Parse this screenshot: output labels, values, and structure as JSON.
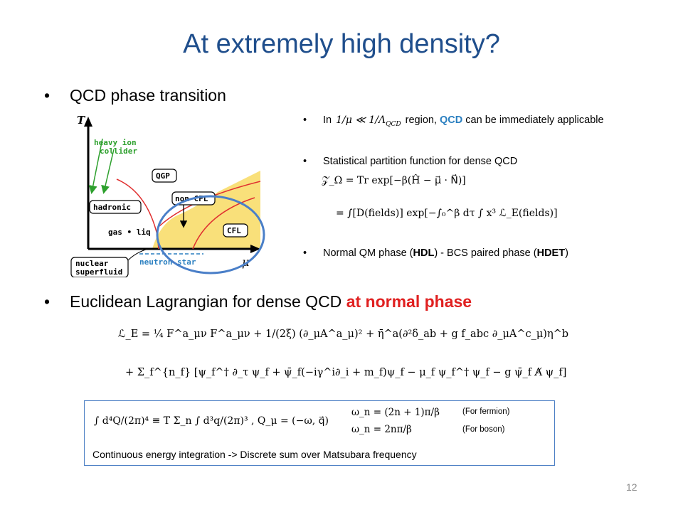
{
  "title": "At extremely high density?",
  "bullet1": "QCD phase transition",
  "bullet2": {
    "prefix": "Euclidean Lagrangian for dense QCD ",
    "highlight": "at normal phase"
  },
  "diagram": {
    "axis_y": "T",
    "axis_x": "μ",
    "labels": {
      "heavy_ion": "heavy ion\ncollider",
      "qgp": "QGP",
      "hadronic": "hadronic",
      "non_cfl": "non-CFL",
      "gas_liq": "gas • liq",
      "cfl": "CFL",
      "nuclear": "nuclear\nsuperfluid",
      "neutron": "neutron star"
    }
  },
  "right_bullets": {
    "b1_pre": "In",
    "b1_math": "1/μ ≪ 1/Λ",
    "b1_math_sub": "QCD",
    "b1_post": "region, ",
    "b1_qcd": "QCD",
    "b1_rest": " can be immediately applicable",
    "b2": "Statistical partition function for dense QCD",
    "b3_a": "Normal QM phase (",
    "b3_hdl": "HDL",
    "b3_b": ") - BCS paired phase (",
    "b3_hdet": "HDET",
    "b3_c": ")"
  },
  "formulas": {
    "partition_line1": "𝒵_Ω = Tr exp[−β(Ĥ − μ⃗ · N⃗)]",
    "partition_line2": "= ∫[D(fields)] exp[−∫₀^β dτ ∫ x³ ℒ_E(fields)]",
    "lagrangian_line1": "ℒ_E = ¼ F^a_μν F^a_μν + 1/(2ξ) (∂_μA^a_μ)² + η̄^a(∂²δ_ab + g f_abc ∂_μA^c_μ)η^b",
    "lagrangian_line2": "+ Σ_f^{n_f} [ψ_f^† ∂_τ ψ_f + ψ̄_f(−iγ^i∂_i + m_f)ψ_f − μ_f ψ_f^† ψ_f − g ψ̄_f A̸ ψ_f]",
    "box_integral": "∫ d⁴Q/(2π)⁴ ≡ T Σ_n ∫ d³q/(2π)³ ,   Q_μ = (−ω, q⃗)",
    "omega_fermion": "ω_n = (2n + 1)π/β",
    "omega_boson": "ω_n = 2nπ/β"
  },
  "box": {
    "fermion_note": "(For fermion)",
    "boson_note": "(For boson)",
    "caption": "Continuous energy integration -> Discrete sum over Matsubara frequency"
  },
  "page_number": "12",
  "colors": {
    "title": "#1f4e8c",
    "highlight_red": "#e02020",
    "qcd_blue": "#2a7fc0",
    "cfl_fill": "#f9e07a",
    "phase_line": "#e03030",
    "circle": "#4a7fc8"
  }
}
